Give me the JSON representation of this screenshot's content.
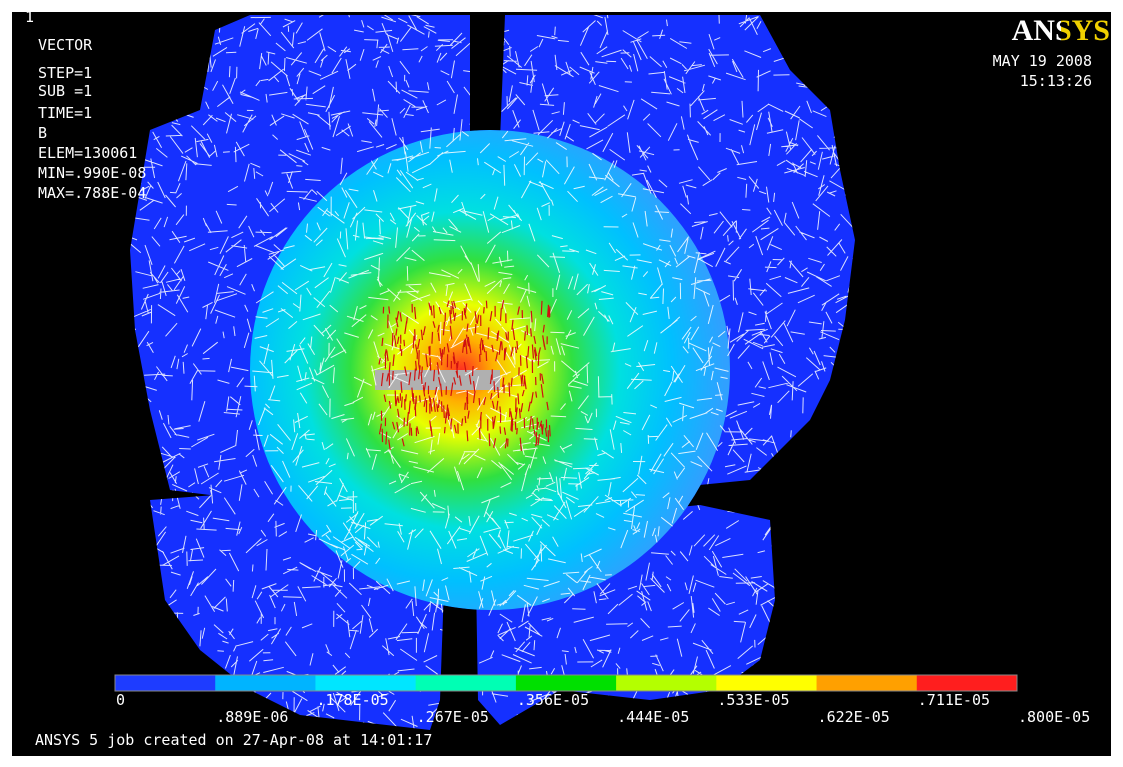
{
  "window_number": "1",
  "info": [
    "VECTOR",
    "STEP=1",
    "SUB =1",
    "TIME=1",
    "B",
    "ELEM=130061",
    "MIN=.990E-08",
    "MAX=.788E-04"
  ],
  "logo": "ANSYS",
  "date": "MAY 19 2008",
  "time": "15:13:26",
  "legend": {
    "colors": [
      "#1e3cff",
      "#00b4ff",
      "#00e6ff",
      "#00ffb4",
      "#00e000",
      "#b4ff00",
      "#ffff00",
      "#ffa000",
      "#ff1e1e"
    ],
    "labels": [
      "0",
      ".889E-06",
      ".178E-05",
      ".267E-05",
      ".356E-05",
      ".444E-05",
      ".533E-05",
      ".622E-05",
      ".711E-05",
      ".800E-05"
    ]
  },
  "footer": "ANSYS 5 job created on 27-Apr-08 at 14:01:17"
}
